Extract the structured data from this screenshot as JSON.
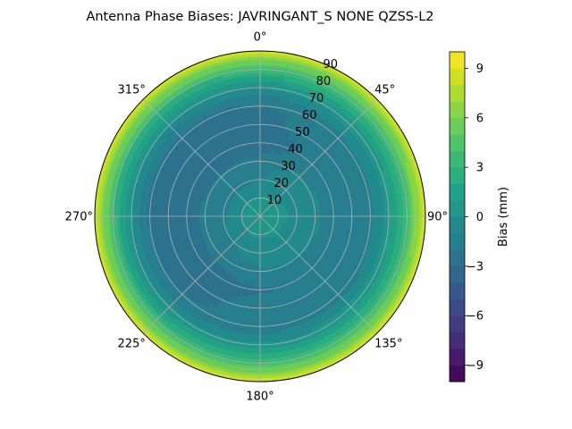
{
  "chart_data": {
    "type": "heatmap",
    "projection": "polar",
    "title": "Antenna Phase Biases: JAVRINGANT_S    NONE QZSS-L2",
    "angle_axis": {
      "direction": "clockwise",
      "zero_location": "top",
      "tick_labels": [
        "0°",
        "45°",
        "90°",
        "135°",
        "180°",
        "225°",
        "270°",
        "315°"
      ]
    },
    "radial_axis": {
      "quantity": "zenith angle",
      "range": [
        0,
        90
      ],
      "tick_values": [
        10,
        20,
        30,
        40,
        50,
        60,
        70,
        80,
        90
      ],
      "tick_labels": [
        "10",
        "20",
        "30",
        "40",
        "50",
        "60",
        "70",
        "80",
        "90"
      ]
    },
    "grid": true,
    "colorbar": {
      "label": "Bias (mm)",
      "range": [
        -10,
        10
      ],
      "tick_values": [
        -9,
        -6,
        -3,
        0,
        3,
        6,
        9
      ],
      "tick_labels": [
        "−9",
        "−6",
        "−3",
        "0",
        "3",
        "6",
        "9"
      ],
      "level_step": 1,
      "colormap": "viridis",
      "placement": "right"
    },
    "radial_profile": {
      "zenith": [
        0,
        10,
        15,
        20,
        25,
        30,
        35,
        40,
        45,
        50,
        55,
        60,
        65,
        70,
        75,
        80,
        85,
        90
      ],
      "bias_mm": [
        0.3,
        0.2,
        -0.4,
        -0.9,
        -1.0,
        -1.3,
        -1.9,
        -2.3,
        -2.1,
        -2.0,
        -2.0,
        -1.8,
        -1.0,
        0.2,
        1.8,
        3.6,
        6.0,
        8.5
      ]
    },
    "azimuth_variation_mm": {
      "azimuth": [
        0,
        45,
        90,
        135,
        180,
        225,
        270,
        315
      ],
      "delta_at_mid_zenith": [
        -0.3,
        0.5,
        0.8,
        0.4,
        0.2,
        -0.2,
        -0.4,
        -0.6
      ]
    }
  }
}
